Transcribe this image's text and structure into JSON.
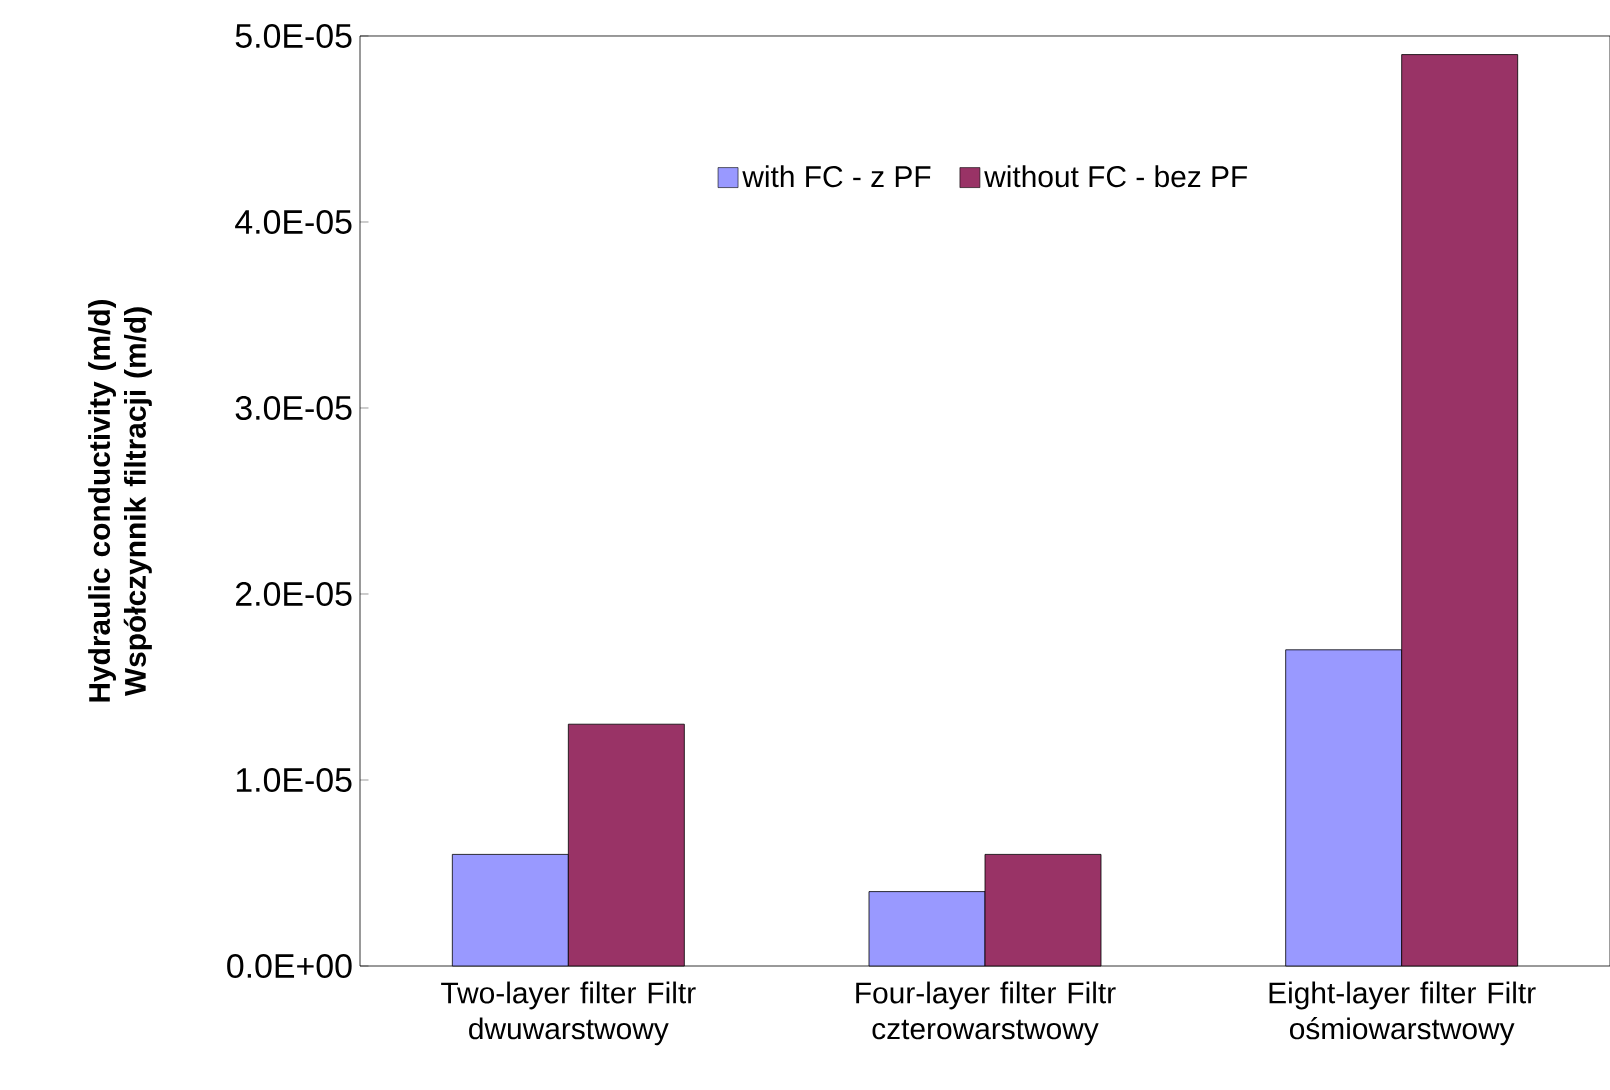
{
  "chart_data": {
    "type": "bar",
    "ylabel": "Hydraulic conductivity (m/d) Współczynnik filtracji (m/d)",
    "categories": [
      "Two-layer filter Filtr dwuwarstwowy",
      "Four-layer filter Filtr czterowarstwowy",
      "Eight-layer filter Filtr ośmiowarstwowy"
    ],
    "series": [
      {
        "name": "with FC - z PF",
        "color": "#9999ff",
        "values": [
          6e-06,
          4e-06,
          1.7e-05
        ]
      },
      {
        "name": "without FC - bez PF",
        "color": "#993366",
        "values": [
          1.3e-05,
          6e-06,
          4.9e-05
        ]
      }
    ],
    "ylim": [
      0,
      5e-05
    ],
    "yticks": [
      {
        "value": 0,
        "label": "0.0E+00"
      },
      {
        "value": 1e-05,
        "label": "1.0E-05"
      },
      {
        "value": 2e-05,
        "label": "2.0E-05"
      },
      {
        "value": 3e-05,
        "label": "3.0E-05"
      },
      {
        "value": 4e-05,
        "label": "4.0E-05"
      },
      {
        "value": 5e-05,
        "label": "5.0E-05"
      }
    ],
    "grid": false,
    "legend": "top"
  }
}
